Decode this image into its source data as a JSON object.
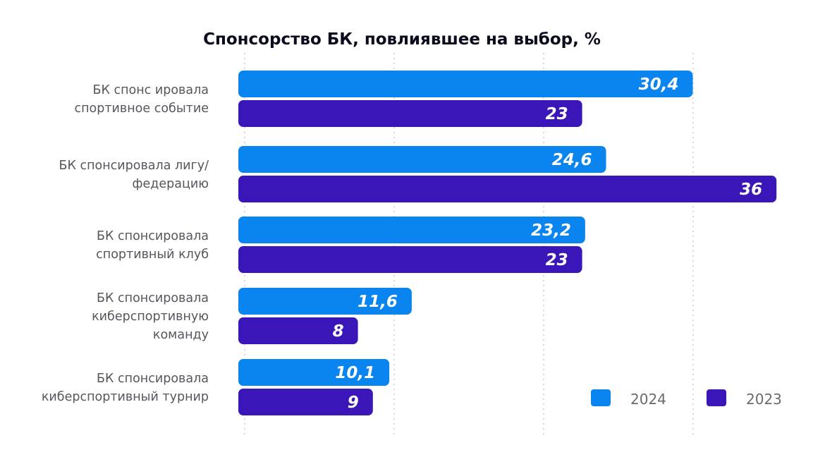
{
  "chart_data": {
    "type": "bar",
    "orientation": "horizontal",
    "title": "Спонсорство БК, повлиявшее на выбор, %",
    "categories": [
      [
        "БК спонс ировала",
        "спортивное событие"
      ],
      [
        "БК спонсировала лигу/",
        "федерацию"
      ],
      [
        "БК спонсировала",
        "спортивный клуб"
      ],
      [
        "БК спонсировала",
        "киберспортивную",
        "команду"
      ],
      [
        "БК спонсировала",
        "киберспортивный турнир"
      ]
    ],
    "series": [
      {
        "name": "2024",
        "color": "#0a84ee",
        "values": [
          30.4,
          24.6,
          23.2,
          11.6,
          10.1
        ],
        "labels": [
          "30,4",
          "24,6",
          "23,2",
          "11,6",
          "10,1"
        ]
      },
      {
        "name": "2023",
        "color": "#3a16b8",
        "values": [
          23,
          36,
          23,
          8,
          9
        ],
        "labels": [
          "23",
          "36",
          "23",
          "8",
          "9"
        ]
      }
    ],
    "xlim": [
      0,
      36
    ],
    "grid": true,
    "legend_position": "bottom-right"
  }
}
